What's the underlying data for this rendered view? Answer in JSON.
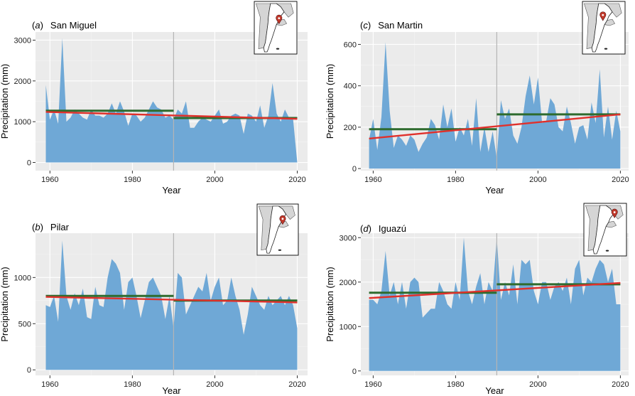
{
  "colors": {
    "area": "#6fa8d6",
    "mean_line": "#2e6b2e",
    "trend_line": "#e0302b",
    "panel_background": "#ebebeb",
    "divider": "#b5b5b5",
    "marker": "#c0392b"
  },
  "chart_data": [
    {
      "type": "area",
      "panel_letter": "a",
      "station": "San Miguel",
      "xlabel": "Year",
      "ylabel": "Precipitation (mm)",
      "xlim": [
        1956.5,
        2022.5
      ],
      "ylim": [
        -200,
        3200
      ],
      "x_ticks": [
        1960,
        1980,
        2000,
        2020
      ],
      "y_ticks": [
        0,
        1000,
        2000,
        3000
      ],
      "split_year": 1990,
      "x": [
        1959,
        1960,
        1961,
        1962,
        1963,
        1964,
        1965,
        1966,
        1967,
        1968,
        1969,
        1970,
        1971,
        1972,
        1973,
        1974,
        1975,
        1976,
        1977,
        1978,
        1979,
        1980,
        1981,
        1982,
        1983,
        1984,
        1985,
        1986,
        1987,
        1988,
        1989,
        1990,
        1991,
        1992,
        1993,
        1994,
        1995,
        1996,
        1997,
        1998,
        1999,
        2000,
        2001,
        2002,
        2003,
        2004,
        2005,
        2006,
        2007,
        2008,
        2009,
        2010,
        2011,
        2012,
        2013,
        2014,
        2015,
        2016,
        2017,
        2018,
        2019,
        2020
      ],
      "values": [
        1900,
        1050,
        1300,
        950,
        3050,
        1000,
        1100,
        1300,
        1200,
        1100,
        1050,
        1300,
        1150,
        1150,
        1100,
        1200,
        1450,
        1200,
        1500,
        1250,
        900,
        1200,
        1150,
        1000,
        1100,
        1300,
        1500,
        1350,
        1300,
        1100,
        1150,
        1050,
        1300,
        1200,
        1500,
        850,
        850,
        1000,
        1100,
        1050,
        1000,
        1150,
        1300,
        950,
        1000,
        1150,
        1200,
        1150,
        700,
        1200,
        1150,
        1000,
        1400,
        850,
        1150,
        1950,
        1200,
        1000,
        1300,
        1100,
        1050,
        0
      ],
      "mean_before": {
        "x": [
          1959,
          1990
        ],
        "y": [
          1270,
          1270
        ]
      },
      "mean_after": {
        "x": [
          1990,
          2020
        ],
        "y": [
          1090,
          1090
        ]
      },
      "trend": {
        "x": [
          1959,
          2020
        ],
        "y": [
          1240,
          1070
        ]
      },
      "map_marker": [
        0.58,
        0.33
      ]
    },
    {
      "type": "area",
      "panel_letter": "b",
      "station": "Pilar",
      "xlabel": "Year",
      "ylabel": "Precipitation (mm)",
      "xlim": [
        1956.5,
        2022.5
      ],
      "ylim": [
        -60,
        1480
      ],
      "x_ticks": [
        1960,
        1980,
        2000,
        2020
      ],
      "y_ticks": [
        0,
        500,
        1000
      ],
      "split_year": 1990,
      "x": [
        1959,
        1960,
        1961,
        1962,
        1963,
        1964,
        1965,
        1966,
        1967,
        1968,
        1969,
        1970,
        1971,
        1972,
        1973,
        1974,
        1975,
        1976,
        1977,
        1978,
        1979,
        1980,
        1981,
        1982,
        1983,
        1984,
        1985,
        1986,
        1987,
        1988,
        1989,
        1990,
        1991,
        1992,
        1993,
        1994,
        1995,
        1996,
        1997,
        1998,
        1999,
        2000,
        2001,
        2002,
        2003,
        2004,
        2005,
        2006,
        2007,
        2008,
        2009,
        2010,
        2011,
        2012,
        2013,
        2014,
        2015,
        2016,
        2017,
        2018,
        2019,
        2020
      ],
      "values": [
        700,
        680,
        800,
        520,
        1400,
        800,
        650,
        830,
        700,
        880,
        570,
        550,
        900,
        700,
        680,
        1000,
        1200,
        1150,
        1050,
        650,
        950,
        1000,
        800,
        560,
        750,
        950,
        1000,
        900,
        800,
        550,
        800,
        450,
        1050,
        1000,
        600,
        700,
        800,
        900,
        850,
        1050,
        750,
        900,
        1000,
        700,
        750,
        1000,
        800,
        650,
        380,
        600,
        900,
        800,
        700,
        650,
        800,
        700,
        750,
        800,
        700,
        800,
        700,
        450
      ],
      "mean_before": {
        "x": [
          1959,
          1990
        ],
        "y": [
          800,
          800
        ]
      },
      "mean_after": {
        "x": [
          1990,
          2020
        ],
        "y": [
          750,
          750
        ]
      },
      "trend": {
        "x": [
          1959,
          2020
        ],
        "y": [
          790,
          730
        ]
      },
      "map_marker": [
        0.62,
        0.3
      ]
    },
    {
      "type": "area",
      "panel_letter": "c",
      "station": "San Martin",
      "xlabel": "Year",
      "ylabel": "Precipitation (mm)",
      "xlim": [
        1957,
        2022
      ],
      "ylim": [
        -10,
        660
      ],
      "x_ticks": [
        1960,
        1980,
        2000,
        2020
      ],
      "y_ticks": [
        0,
        200,
        400,
        600
      ],
      "split_year": 1990,
      "x": [
        1959,
        1960,
        1961,
        1962,
        1963,
        1964,
        1965,
        1966,
        1967,
        1968,
        1969,
        1970,
        1971,
        1972,
        1973,
        1974,
        1975,
        1976,
        1977,
        1978,
        1979,
        1980,
        1981,
        1982,
        1983,
        1984,
        1985,
        1986,
        1987,
        1988,
        1989,
        1990,
        1991,
        1992,
        1993,
        1994,
        1995,
        1996,
        1997,
        1998,
        1999,
        2000,
        2001,
        2002,
        2003,
        2004,
        2005,
        2006,
        2007,
        2008,
        2009,
        2010,
        2011,
        2012,
        2013,
        2014,
        2015,
        2016,
        2017,
        2018,
        2019,
        2020
      ],
      "values": [
        140,
        240,
        90,
        250,
        610,
        280,
        100,
        160,
        140,
        110,
        160,
        140,
        80,
        120,
        150,
        240,
        210,
        140,
        310,
        200,
        290,
        130,
        200,
        160,
        240,
        110,
        340,
        80,
        200,
        80,
        180,
        50,
        330,
        240,
        290,
        160,
        120,
        200,
        350,
        450,
        310,
        440,
        220,
        230,
        340,
        310,
        200,
        180,
        300,
        220,
        120,
        200,
        210,
        140,
        320,
        220,
        480,
        150,
        300,
        140,
        280,
        180
      ],
      "mean_before": {
        "x": [
          1959,
          1990
        ],
        "y": [
          190,
          190
        ]
      },
      "mean_after": {
        "x": [
          1990,
          2020
        ],
        "y": [
          262,
          262
        ]
      },
      "trend": {
        "x": [
          1959,
          2020
        ],
        "y": [
          145,
          262
        ]
      },
      "map_marker": [
        0.48,
        0.27
      ]
    },
    {
      "type": "area",
      "panel_letter": "d",
      "station": "Iguazú",
      "xlabel": "Year",
      "ylabel": "Precipitation (mm)",
      "xlim": [
        1957,
        2022
      ],
      "ylim": [
        -100,
        3100
      ],
      "x_ticks": [
        1960,
        1980,
        2000,
        2020
      ],
      "y_ticks": [
        0,
        1000,
        2000,
        3000
      ],
      "split_year": 1990,
      "x": [
        1959,
        1960,
        1961,
        1962,
        1963,
        1964,
        1965,
        1966,
        1967,
        1968,
        1969,
        1970,
        1971,
        1972,
        1973,
        1974,
        1975,
        1976,
        1977,
        1978,
        1979,
        1980,
        1981,
        1982,
        1983,
        1984,
        1985,
        1986,
        1987,
        1988,
        1989,
        1990,
        1991,
        1992,
        1993,
        1994,
        1995,
        1996,
        1997,
        1998,
        1999,
        2000,
        2001,
        2002,
        2003,
        2004,
        2005,
        2006,
        2007,
        2008,
        2009,
        2010,
        2011,
        2012,
        2013,
        2014,
        2015,
        2016,
        2017,
        2018,
        2019,
        2020
      ],
      "values": [
        1600,
        1600,
        1500,
        1800,
        2700,
        1700,
        2000,
        1500,
        2000,
        1400,
        2000,
        2100,
        2000,
        1200,
        1300,
        1400,
        1400,
        2000,
        1800,
        1500,
        1400,
        2000,
        1600,
        3000,
        1800,
        1500,
        1900,
        2200,
        1500,
        2000,
        1800,
        3000,
        1600,
        2000,
        1700,
        2400,
        1500,
        2500,
        2400,
        2500,
        1800,
        1500,
        2000,
        2000,
        1600,
        1900,
        2000,
        1800,
        2100,
        1500,
        2300,
        2500,
        1700,
        2100,
        2000,
        2300,
        2500,
        2400,
        2000,
        2300,
        1500,
        1500
      ],
      "mean_before": {
        "x": [
          1959,
          1990
        ],
        "y": [
          1760,
          1760
        ]
      },
      "mean_after": {
        "x": [
          1990,
          2020
        ],
        "y": [
          1950,
          1950
        ]
      },
      "trend": {
        "x": [
          1959,
          2020
        ],
        "y": [
          1640,
          1980
        ]
      },
      "map_marker": [
        0.72,
        0.18
      ]
    }
  ]
}
